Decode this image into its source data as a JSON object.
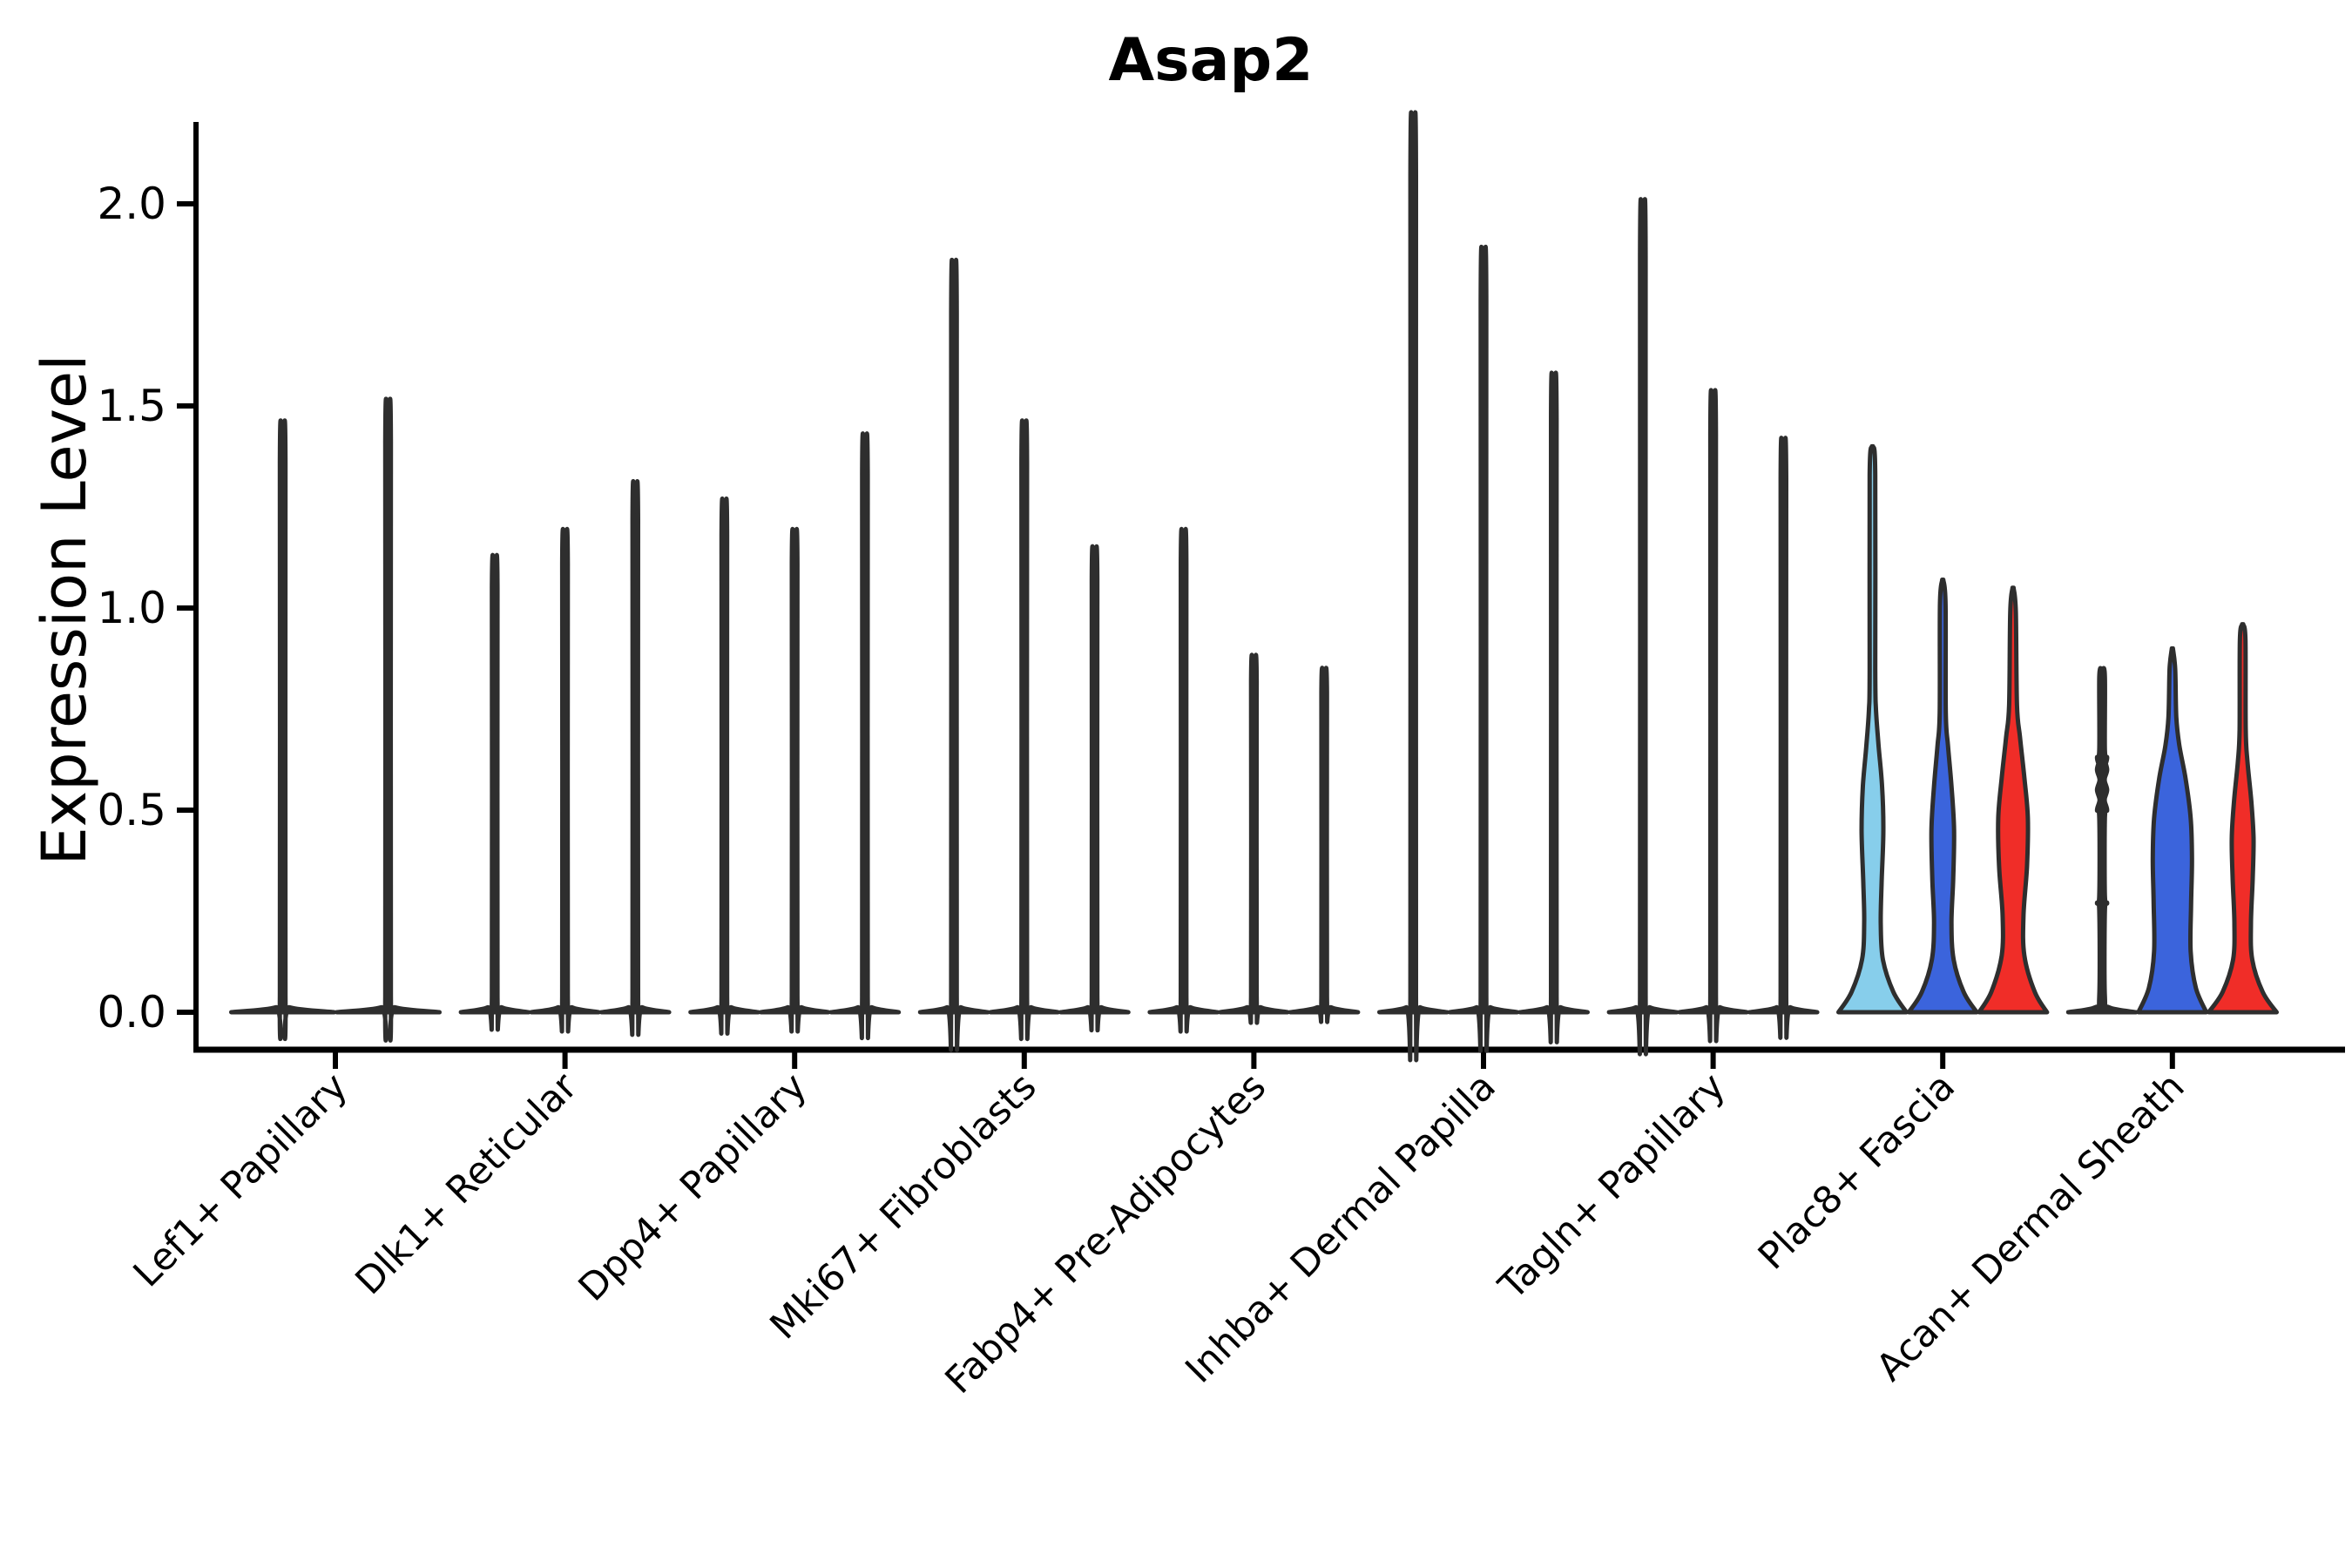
{
  "chart_data": {
    "type": "violin",
    "title": "Asap2",
    "ylabel": "Expression Level",
    "xlabel": "",
    "ylim": [
      -0.11,
      2.17
    ],
    "grid": false,
    "legend": null,
    "yticks": [
      {
        "v": 0.0,
        "label": "0.0"
      },
      {
        "v": 0.5,
        "label": "0.5"
      },
      {
        "v": 1.0,
        "label": "1.0"
      },
      {
        "v": 1.5,
        "label": "1.5"
      },
      {
        "v": 2.0,
        "label": "2.0"
      }
    ],
    "palette": {
      "light_blue": "#87CEEB",
      "blue": "#3B64DC",
      "red": "#F02D28",
      "violin_edge": "#2E2E2E",
      "axis": "#000000"
    },
    "groups": [
      {
        "label": "Lef1+ Papillary",
        "violins": [
          {
            "peak": 1.38,
            "shape": "spike"
          },
          {
            "peak": 1.43,
            "shape": "spike"
          }
        ]
      },
      {
        "label": "Dlk1+ Reticular",
        "violins": [
          {
            "peak": 1.07,
            "shape": "spike"
          },
          {
            "peak": 1.13,
            "shape": "spike"
          },
          {
            "peak": 1.24,
            "shape": "spike"
          }
        ]
      },
      {
        "label": "Dpp4+ Papillary",
        "violins": [
          {
            "peak": 1.2,
            "shape": "spike"
          },
          {
            "peak": 1.13,
            "shape": "spike"
          },
          {
            "peak": 1.35,
            "shape": "spike"
          }
        ]
      },
      {
        "label": "Mki67+ Fibroblasts",
        "violins": [
          {
            "peak": 1.75,
            "shape": "spike"
          },
          {
            "peak": 1.38,
            "shape": "spike"
          },
          {
            "peak": 1.09,
            "shape": "spike"
          }
        ]
      },
      {
        "label": "Fabp4+ Pre-Adipocytes",
        "violins": [
          {
            "peak": 1.13,
            "shape": "spike"
          },
          {
            "peak": 0.84,
            "shape": "spike"
          },
          {
            "peak": 0.81,
            "shape": "spike"
          }
        ]
      },
      {
        "label": "Inhba+ Dermal Papilla",
        "violins": [
          {
            "peak": 2.09,
            "shape": "spike"
          },
          {
            "peak": 1.78,
            "shape": "spike"
          },
          {
            "peak": 1.49,
            "shape": "spike"
          }
        ]
      },
      {
        "label": "Tagln+ Papillary",
        "violins": [
          {
            "peak": 1.89,
            "shape": "spike"
          },
          {
            "peak": 1.45,
            "shape": "spike"
          },
          {
            "peak": 1.34,
            "shape": "spike"
          }
        ]
      },
      {
        "label": "Plac8+ Fascia",
        "violins": [
          {
            "peak": 1.4,
            "shape": "violin",
            "fill": "#87CEEB",
            "profile": [
              [
                0,
                39
              ],
              [
                0.05,
                24
              ],
              [
                0.13,
                12
              ],
              [
                0.22,
                9.5
              ],
              [
                0.32,
                10.5
              ],
              [
                0.45,
                12.5
              ],
              [
                0.56,
                11
              ],
              [
                0.66,
                7
              ],
              [
                0.75,
                4
              ],
              [
                0.85,
                3.2
              ],
              [
                1.33,
                3.2
              ],
              [
                1.4,
                0.6
              ]
            ]
          },
          {
            "peak": 1.07,
            "shape": "violin",
            "fill": "#3B64DC",
            "profile": [
              [
                0,
                39
              ],
              [
                0.05,
                24
              ],
              [
                0.13,
                12.5
              ],
              [
                0.22,
                10
              ],
              [
                0.33,
                12
              ],
              [
                0.45,
                13
              ],
              [
                0.56,
                10
              ],
              [
                0.66,
                6
              ],
              [
                0.74,
                3.5
              ],
              [
                1.01,
                3.2
              ],
              [
                1.07,
                0.6
              ]
            ]
          },
          {
            "peak": 1.05,
            "shape": "violin",
            "fill": "#F02D28",
            "profile": [
              [
                0,
                39
              ],
              [
                0.05,
                25
              ],
              [
                0.14,
                13
              ],
              [
                0.24,
                12
              ],
              [
                0.36,
                16
              ],
              [
                0.48,
                17
              ],
              [
                0.58,
                13
              ],
              [
                0.68,
                8
              ],
              [
                0.76,
                4.5
              ],
              [
                0.99,
                3.2
              ],
              [
                1.05,
                0.6
              ]
            ]
          }
        ]
      },
      {
        "label": "Acan+ Dermal Sheath",
        "violins": [
          {
            "peak": 0.85,
            "shape": "spike",
            "bumps": [
              0.27,
              0.5,
              0.55,
              0.6,
              0.63
            ]
          },
          {
            "peak": 0.9,
            "shape": "violin",
            "fill": "#3B64DC",
            "profile": [
              [
                0,
                39
              ],
              [
                0.06,
                27
              ],
              [
                0.15,
                21
              ],
              [
                0.27,
                21.5
              ],
              [
                0.38,
                22.5
              ],
              [
                0.48,
                21
              ],
              [
                0.58,
                15
              ],
              [
                0.66,
                8
              ],
              [
                0.73,
                4.5
              ],
              [
                0.85,
                3.2
              ],
              [
                0.9,
                0.6
              ]
            ]
          },
          {
            "peak": 0.96,
            "shape": "violin",
            "fill": "#F02D28",
            "profile": [
              [
                0,
                39
              ],
              [
                0.05,
                23
              ],
              [
                0.13,
                11
              ],
              [
                0.22,
                9.5
              ],
              [
                0.33,
                11.5
              ],
              [
                0.43,
                12.5
              ],
              [
                0.52,
                10
              ],
              [
                0.62,
                5.5
              ],
              [
                0.7,
                3.5
              ],
              [
                0.92,
                3.2
              ],
              [
                0.96,
                0.6
              ]
            ]
          }
        ]
      }
    ]
  }
}
